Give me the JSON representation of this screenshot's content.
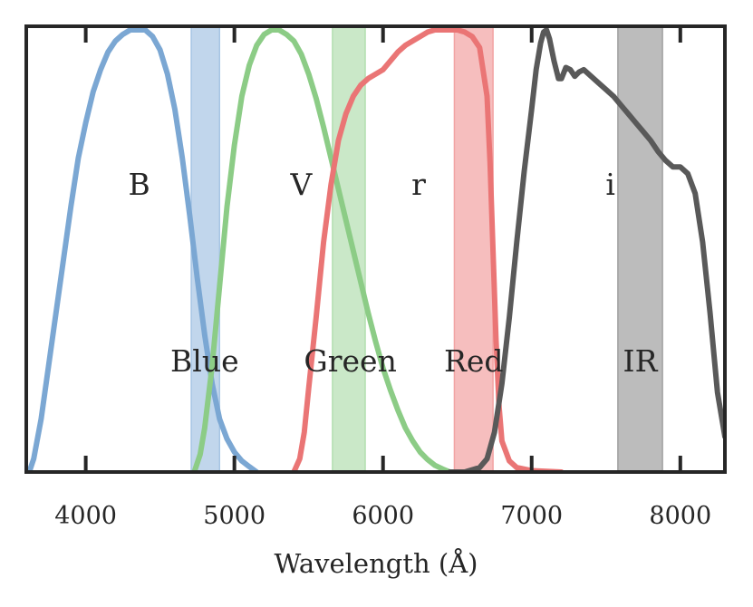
{
  "chart_data": {
    "type": "line",
    "title": "",
    "xlabel": "Wavelength (Å)",
    "ylabel": "",
    "xlim": [
      3600,
      8300
    ],
    "ylim": [
      0,
      1.0
    ],
    "grid": false,
    "x_ticks": [
      4000,
      5000,
      6000,
      7000,
      8000
    ],
    "x_tick_labels": [
      "4000",
      "5000",
      "6000",
      "7000",
      "8000"
    ],
    "series": [
      {
        "name": "B",
        "color": "#7ba7d3",
        "label_x": 4360,
        "label_y": 0.65,
        "points": [
          [
            3620,
            0.0
          ],
          [
            3650,
            0.03
          ],
          [
            3700,
            0.12
          ],
          [
            3750,
            0.24
          ],
          [
            3800,
            0.36
          ],
          [
            3850,
            0.48
          ],
          [
            3900,
            0.6
          ],
          [
            3950,
            0.71
          ],
          [
            4000,
            0.79
          ],
          [
            4050,
            0.86
          ],
          [
            4100,
            0.91
          ],
          [
            4150,
            0.95
          ],
          [
            4200,
            0.975
          ],
          [
            4250,
            0.99
          ],
          [
            4300,
            1.0
          ],
          [
            4350,
            1.0
          ],
          [
            4400,
            1.0
          ],
          [
            4450,
            0.985
          ],
          [
            4500,
            0.955
          ],
          [
            4550,
            0.9
          ],
          [
            4600,
            0.82
          ],
          [
            4650,
            0.71
          ],
          [
            4700,
            0.58
          ],
          [
            4750,
            0.44
          ],
          [
            4800,
            0.31
          ],
          [
            4850,
            0.2
          ],
          [
            4900,
            0.12
          ],
          [
            4950,
            0.075
          ],
          [
            5000,
            0.045
          ],
          [
            5050,
            0.025
          ],
          [
            5100,
            0.012
          ],
          [
            5150,
            0.0
          ]
        ]
      },
      {
        "name": "V",
        "color": "#8ccc86",
        "label_x": 5450,
        "label_y": 0.65,
        "points": [
          [
            4730,
            0.0
          ],
          [
            4770,
            0.04
          ],
          [
            4800,
            0.1
          ],
          [
            4850,
            0.24
          ],
          [
            4900,
            0.42
          ],
          [
            4950,
            0.6
          ],
          [
            5000,
            0.74
          ],
          [
            5050,
            0.85
          ],
          [
            5100,
            0.92
          ],
          [
            5150,
            0.965
          ],
          [
            5200,
            0.99
          ],
          [
            5250,
            1.0
          ],
          [
            5300,
            1.0
          ],
          [
            5350,
            0.99
          ],
          [
            5400,
            0.975
          ],
          [
            5450,
            0.945
          ],
          [
            5500,
            0.9
          ],
          [
            5550,
            0.845
          ],
          [
            5600,
            0.78
          ],
          [
            5650,
            0.71
          ],
          [
            5700,
            0.64
          ],
          [
            5750,
            0.57
          ],
          [
            5800,
            0.5
          ],
          [
            5850,
            0.43
          ],
          [
            5900,
            0.36
          ],
          [
            5950,
            0.295
          ],
          [
            6000,
            0.235
          ],
          [
            6050,
            0.185
          ],
          [
            6100,
            0.14
          ],
          [
            6150,
            0.1
          ],
          [
            6200,
            0.07
          ],
          [
            6250,
            0.045
          ],
          [
            6300,
            0.028
          ],
          [
            6350,
            0.015
          ],
          [
            6400,
            0.007
          ],
          [
            6450,
            0.0
          ]
        ]
      },
      {
        "name": "r",
        "color": "#ea7575",
        "label_x": 6240,
        "label_y": 0.65,
        "points": [
          [
            5400,
            0.0
          ],
          [
            5440,
            0.03
          ],
          [
            5470,
            0.09
          ],
          [
            5500,
            0.19
          ],
          [
            5550,
            0.35
          ],
          [
            5600,
            0.52
          ],
          [
            5650,
            0.65
          ],
          [
            5700,
            0.75
          ],
          [
            5750,
            0.81
          ],
          [
            5800,
            0.85
          ],
          [
            5850,
            0.875
          ],
          [
            5900,
            0.89
          ],
          [
            5950,
            0.9
          ],
          [
            6000,
            0.91
          ],
          [
            6050,
            0.93
          ],
          [
            6100,
            0.95
          ],
          [
            6150,
            0.965
          ],
          [
            6200,
            0.975
          ],
          [
            6250,
            0.985
          ],
          [
            6300,
            0.995
          ],
          [
            6350,
            1.0
          ],
          [
            6400,
            1.0
          ],
          [
            6450,
            1.0
          ],
          [
            6500,
            1.0
          ],
          [
            6550,
            0.995
          ],
          [
            6600,
            0.985
          ],
          [
            6650,
            0.96
          ],
          [
            6700,
            0.85
          ],
          [
            6720,
            0.7
          ],
          [
            6740,
            0.5
          ],
          [
            6760,
            0.3
          ],
          [
            6780,
            0.15
          ],
          [
            6800,
            0.07
          ],
          [
            6850,
            0.025
          ],
          [
            6900,
            0.01
          ],
          [
            7000,
            0.003
          ],
          [
            7200,
            0.0
          ]
        ]
      },
      {
        "name": "i",
        "color": "#595959",
        "label_x": 7530,
        "label_y": 0.65,
        "points": [
          [
            6450,
            0.0
          ],
          [
            6550,
            0.0
          ],
          [
            6650,
            0.01
          ],
          [
            6700,
            0.03
          ],
          [
            6750,
            0.09
          ],
          [
            6800,
            0.2
          ],
          [
            6850,
            0.35
          ],
          [
            6900,
            0.52
          ],
          [
            6950,
            0.68
          ],
          [
            7000,
            0.82
          ],
          [
            7030,
            0.91
          ],
          [
            7060,
            0.97
          ],
          [
            7080,
            0.995
          ],
          [
            7100,
            1.0
          ],
          [
            7120,
            0.98
          ],
          [
            7150,
            0.93
          ],
          [
            7180,
            0.89
          ],
          [
            7200,
            0.89
          ],
          [
            7230,
            0.915
          ],
          [
            7260,
            0.91
          ],
          [
            7290,
            0.895
          ],
          [
            7320,
            0.905
          ],
          [
            7350,
            0.91
          ],
          [
            7400,
            0.895
          ],
          [
            7450,
            0.88
          ],
          [
            7500,
            0.865
          ],
          [
            7550,
            0.85
          ],
          [
            7600,
            0.83
          ],
          [
            7650,
            0.81
          ],
          [
            7700,
            0.79
          ],
          [
            7750,
            0.77
          ],
          [
            7800,
            0.75
          ],
          [
            7850,
            0.725
          ],
          [
            7900,
            0.705
          ],
          [
            7950,
            0.69
          ],
          [
            8000,
            0.69
          ],
          [
            8050,
            0.675
          ],
          [
            8100,
            0.63
          ],
          [
            8150,
            0.52
          ],
          [
            8200,
            0.36
          ],
          [
            8250,
            0.18
          ],
          [
            8300,
            0.08
          ]
        ]
      }
    ],
    "bands": [
      {
        "name": "Blue",
        "x_range": [
          4710,
          4900
        ],
        "color": "#a7c5e4",
        "label_x": 4800,
        "label_y": 0.25
      },
      {
        "name": "Green",
        "x_range": [
          5660,
          5880
        ],
        "color": "#b3deb0",
        "label_x": 5780,
        "label_y": 0.25
      },
      {
        "name": "Red",
        "x_range": [
          6480,
          6740
        ],
        "color": "#f2a3a3",
        "label_x": 6610,
        "label_y": 0.25
      },
      {
        "name": "IR",
        "x_range": [
          7580,
          7880
        ],
        "color": "#a0a0a0",
        "label_x": 7730,
        "label_y": 0.25
      }
    ]
  }
}
